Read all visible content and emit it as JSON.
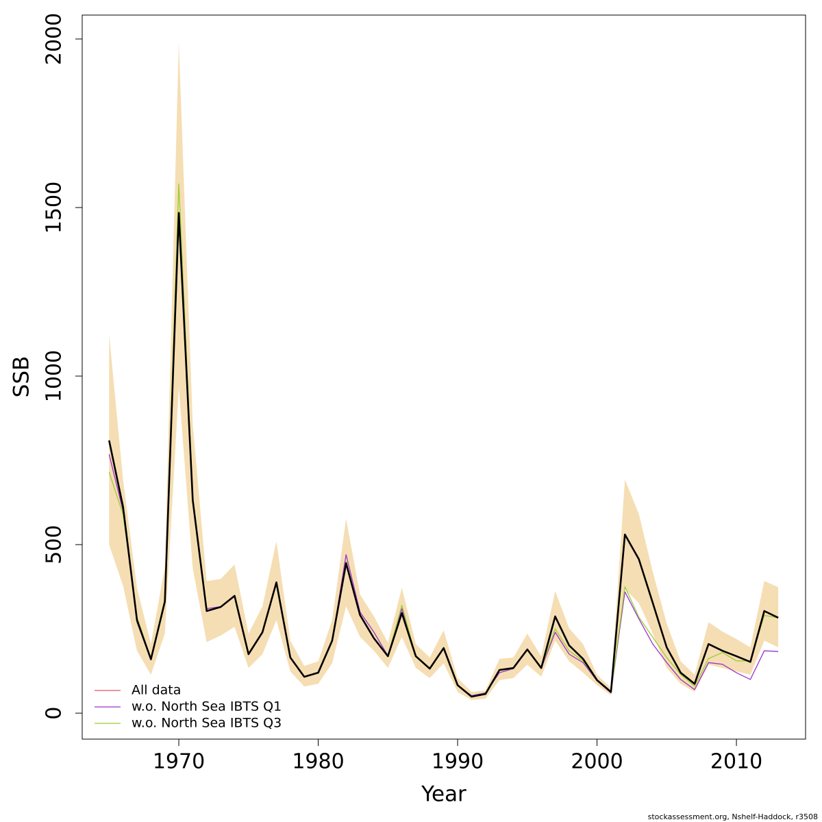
{
  "chart_data": {
    "type": "line",
    "xlabel": "Year",
    "ylabel": "SSB",
    "credit": "stockassessment.org, Nshelf-Haddock, r3508",
    "legend": "bottomleft",
    "xlim": [
      1963.07,
      2014.96
    ],
    "ylim": [
      -77,
      2071
    ],
    "xticks": [
      1970,
      1980,
      1990,
      2000,
      2010
    ],
    "yticks": [
      0,
      500,
      1000,
      1500,
      2000
    ],
    "x": [
      1965,
      1966,
      1967,
      1968,
      1969,
      1970,
      1971,
      1972,
      1973,
      1974,
      1975,
      1976,
      1977,
      1978,
      1979,
      1980,
      1981,
      1982,
      1983,
      1984,
      1985,
      1986,
      1987,
      1988,
      1989,
      1990,
      1991,
      1992,
      1993,
      1994,
      1995,
      1996,
      1997,
      1998,
      1999,
      2000,
      2001,
      2002,
      2003,
      2004,
      2005,
      2006,
      2007,
      2008,
      2009,
      2010,
      2011,
      2012,
      2013
    ],
    "band": {
      "color": "#f5deb3",
      "upper": [
        1124,
        693,
        372,
        205,
        433,
        1990,
        856,
        392,
        398,
        441,
        236,
        317,
        510,
        215,
        140,
        154,
        276,
        577,
        352,
        287,
        209,
        372,
        205,
        165,
        246,
        104,
        63,
        67,
        161,
        165,
        236,
        169,
        362,
        252,
        205,
        114,
        75,
        693,
        591,
        419,
        266,
        154,
        114,
        270,
        242,
        220,
        195,
        392,
        374
      ],
      "lower": [
        500,
        378,
        185,
        114,
        236,
        967,
        429,
        211,
        230,
        256,
        134,
        175,
        276,
        124,
        79,
        87,
        148,
        317,
        226,
        185,
        134,
        226,
        134,
        104,
        148,
        63,
        39,
        43,
        98,
        104,
        144,
        108,
        215,
        154,
        120,
        83,
        53,
        368,
        327,
        236,
        134,
        87,
        63,
        144,
        134,
        124,
        114,
        215,
        195
      ]
    },
    "estimate": {
      "color": "#000000",
      "values": [
        809,
        612,
        276,
        160,
        331,
        1484,
        632,
        303,
        315,
        348,
        175,
        240,
        388,
        165,
        108,
        120,
        215,
        445,
        291,
        222,
        169,
        297,
        169,
        132,
        193,
        83,
        49,
        57,
        128,
        134,
        189,
        134,
        287,
        201,
        161,
        98,
        63,
        530,
        457,
        327,
        195,
        120,
        87,
        205,
        185,
        169,
        152,
        303,
        283
      ]
    },
    "series": [
      {
        "name": "All data",
        "color": "#df536b",
        "values": [
          809,
          612,
          276,
          160,
          331,
          1484,
          632,
          303,
          315,
          348,
          175,
          240,
          388,
          165,
          108,
          120,
          215,
          445,
          291,
          222,
          169,
          297,
          169,
          132,
          193,
          83,
          49,
          57,
          128,
          134,
          189,
          134,
          287,
          201,
          161,
          98,
          63,
          530,
          457,
          327,
          195,
          120,
          87,
          205,
          185,
          169,
          152,
          303,
          283
        ]
      },
      {
        "name": "w.o. North Sea IBTS Q1",
        "color": "#9932cc",
        "values": [
          768,
          600,
          270,
          158,
          330,
          1480,
          628,
          310,
          316,
          346,
          174,
          238,
          386,
          164,
          107,
          119,
          213,
          470,
          300,
          240,
          170,
          310,
          168,
          131,
          192,
          82,
          52,
          60,
          120,
          132,
          188,
          133,
          240,
          175,
          150,
          96,
          60,
          360,
          280,
          205,
          150,
          100,
          70,
          150,
          145,
          120,
          100,
          185,
          183
        ]
      },
      {
        "name": "w.o. North Sea IBTS Q3",
        "color": "#9acd32",
        "values": [
          715,
          590,
          285,
          162,
          340,
          1570,
          640,
          305,
          314,
          350,
          176,
          242,
          390,
          166,
          109,
          121,
          217,
          450,
          293,
          224,
          170,
          320,
          170,
          133,
          195,
          84,
          50,
          58,
          130,
          135,
          190,
          135,
          250,
          185,
          155,
          97,
          62,
          375,
          285,
          225,
          165,
          115,
          80,
          162,
          180,
          155,
          155,
          290,
          283
        ]
      }
    ]
  }
}
